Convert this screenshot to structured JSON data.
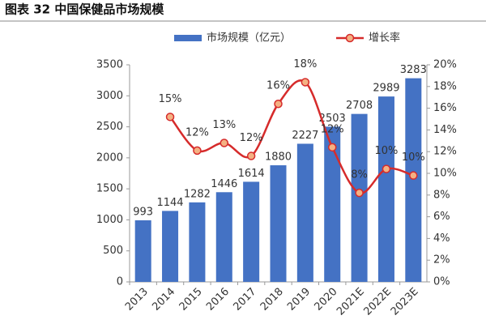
{
  "chart_data": {
    "type": "bar",
    "title": "图表 32 中国保健品市场规模",
    "categories": [
      "2013",
      "2014",
      "2015",
      "2016",
      "2017",
      "2018",
      "2019",
      "2020",
      "2021E",
      "2022E",
      "2023E"
    ],
    "series": [
      {
        "name": "市场规模（亿元）",
        "type": "bar",
        "color": "#4472c4",
        "values": [
          993,
          1144,
          1282,
          1446,
          1614,
          1880,
          2227,
          2503,
          2708,
          2989,
          3283
        ]
      },
      {
        "name": "增长率",
        "type": "line",
        "axis": "y2",
        "color": "#d62b2b",
        "marker_color": "#f4b183",
        "values": [
          null,
          15.2,
          12.1,
          12.8,
          11.6,
          16.4,
          18.4,
          12.4,
          8.2,
          10.4,
          9.8
        ],
        "value_labels": [
          null,
          "15%",
          "12%",
          "13%",
          "12%",
          "16%",
          "18%",
          "12%",
          "8%",
          "10%",
          "10%"
        ]
      }
    ],
    "ylim": [
      0,
      3500
    ],
    "yticks": [
      0,
      500,
      1000,
      1500,
      2000,
      2500,
      3000,
      3500
    ],
    "y2lim": [
      0,
      20
    ],
    "y2ticks": [
      {
        "value": 0,
        "label": "0%"
      },
      {
        "value": 2,
        "label": "2%"
      },
      {
        "value": 4,
        "label": "4%"
      },
      {
        "value": 6,
        "label": "6%"
      },
      {
        "value": 8,
        "label": "8%"
      },
      {
        "value": 10,
        "label": "10%"
      },
      {
        "value": 12,
        "label": "12%"
      },
      {
        "value": 14,
        "label": "14%"
      },
      {
        "value": 16,
        "label": "16%"
      },
      {
        "value": 18,
        "label": "18%"
      },
      {
        "value": 20,
        "label": "20%"
      }
    ]
  }
}
